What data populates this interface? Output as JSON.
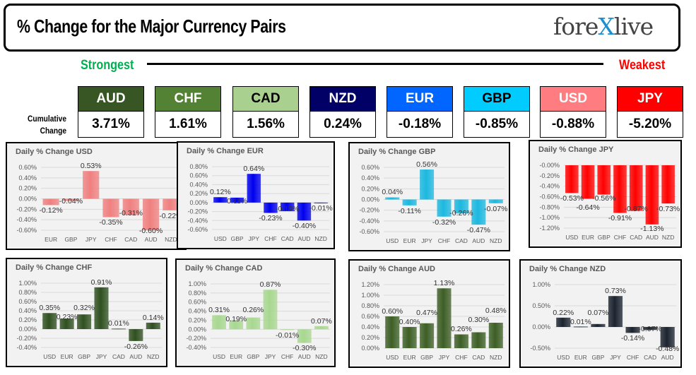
{
  "header": {
    "title": "% Change for the Major Currency Pairs",
    "logo_text": "forexlive"
  },
  "scale": {
    "strongest": "Strongest",
    "weakest": "Weakest",
    "strongest_color": "#00b050",
    "weakest_color": "#ff0000"
  },
  "cumulative": {
    "label_line1": "Cumulative",
    "label_line2": "Change",
    "items": [
      {
        "currency": "AUD",
        "value": "3.71%",
        "color": "#375623",
        "text_color": "#ffffff"
      },
      {
        "currency": "CHF",
        "value": "1.61%",
        "color": "#548235",
        "text_color": "#ffffff"
      },
      {
        "currency": "CAD",
        "value": "1.56%",
        "color": "#a9d08e",
        "text_color": "#000000"
      },
      {
        "currency": "NZD",
        "value": "0.24%",
        "color": "#000066",
        "text_color": "#ffffff"
      },
      {
        "currency": "EUR",
        "value": "-0.18%",
        "color": "#0066ff",
        "text_color": "#ffffff"
      },
      {
        "currency": "GBP",
        "value": "-0.85%",
        "color": "#00ccff",
        "text_color": "#000000"
      },
      {
        "currency": "USD",
        "value": "-0.88%",
        "color": "#ff7c80",
        "text_color": "#ffffff"
      },
      {
        "currency": "JPY",
        "value": "-5.20%",
        "color": "#ff0000",
        "text_color": "#ffffff"
      }
    ]
  },
  "chart_data": [
    {
      "type": "bar",
      "title": "Daily % Change USD",
      "categories": [
        "EUR",
        "GBP",
        "JPY",
        "CHF",
        "CAD",
        "AUD",
        "NZD"
      ],
      "values": [
        -0.12,
        -0.04,
        0.53,
        -0.35,
        -0.31,
        -0.6,
        -0.22
      ],
      "ylim": [
        -0.6,
        0.6
      ],
      "ystep": 0.2,
      "color": "#f08080",
      "grid": true
    },
    {
      "type": "bar",
      "title": "Daily % Change EUR",
      "categories": [
        "USD",
        "GBP",
        "JPY",
        "CHF",
        "CAD",
        "AUD",
        "NZD"
      ],
      "values": [
        0.12,
        0.11,
        0.64,
        -0.23,
        -0.19,
        -0.4,
        -0.01
      ],
      "ylim": [
        -0.6,
        0.8
      ],
      "ystep": 0.2,
      "color": "#0000ee",
      "grid": true
    },
    {
      "type": "bar",
      "title": "Daily % Change GBP",
      "categories": [
        "USD",
        "EUR",
        "JPY",
        "CHF",
        "CAD",
        "AUD",
        "NZD"
      ],
      "values": [
        0.04,
        -0.11,
        0.56,
        -0.32,
        -0.26,
        -0.47,
        -0.07
      ],
      "ylim": [
        -0.6,
        0.6
      ],
      "ystep": 0.2,
      "color": "#1cb8e0",
      "grid": true
    },
    {
      "type": "bar",
      "title": "Daily % Change JPY",
      "categories": [
        "USD",
        "EUR",
        "GBP",
        "CHF",
        "CAD",
        "AUD",
        "NZD"
      ],
      "values": [
        -0.53,
        -0.64,
        -0.56,
        -0.91,
        -0.87,
        -1.13,
        -0.73
      ],
      "ylim": [
        -1.2,
        0
      ],
      "ystep": 0.2,
      "color": "#ff0000",
      "grid": true
    },
    {
      "type": "bar",
      "title": "Daily % Change CHF",
      "categories": [
        "USD",
        "EUR",
        "GBP",
        "JPY",
        "CAD",
        "AUD",
        "NZD"
      ],
      "values": [
        0.35,
        0.23,
        0.32,
        0.91,
        0.01,
        -0.26,
        0.14
      ],
      "ylim": [
        -0.4,
        1.0
      ],
      "ystep": 0.2,
      "color": "#2f5020",
      "grid": true
    },
    {
      "type": "bar",
      "title": "Daily % Change CAD",
      "categories": [
        "USD",
        "EUR",
        "GBP",
        "JPY",
        "CHF",
        "AUD",
        "NZD"
      ],
      "values": [
        0.31,
        0.19,
        0.26,
        0.87,
        -0.01,
        -0.3,
        0.07
      ],
      "ylim": [
        -0.4,
        1.0
      ],
      "ystep": 0.2,
      "color": "#a8d890",
      "grid": true
    },
    {
      "type": "bar",
      "title": "Daily % Change AUD",
      "categories": [
        "USD",
        "EUR",
        "GBP",
        "JPY",
        "CHF",
        "CAD",
        "NZD"
      ],
      "values": [
        0.6,
        0.4,
        0.47,
        1.13,
        0.26,
        0.3,
        0.48
      ],
      "ylim": [
        0,
        1.2
      ],
      "ystep": 0.2,
      "color": "#3d5e25",
      "grid": true
    },
    {
      "type": "bar",
      "title": "Daily % Change NZD",
      "categories": [
        "USD",
        "EUR",
        "GBP",
        "JPY",
        "CHF",
        "CAD",
        "AUD"
      ],
      "values": [
        0.22,
        0.01,
        0.07,
        0.73,
        -0.14,
        -0.07,
        -0.48
      ],
      "ylim": [
        -0.5,
        1.0
      ],
      "ystep": 0.5,
      "color": "#1c2430",
      "grid": true
    }
  ]
}
